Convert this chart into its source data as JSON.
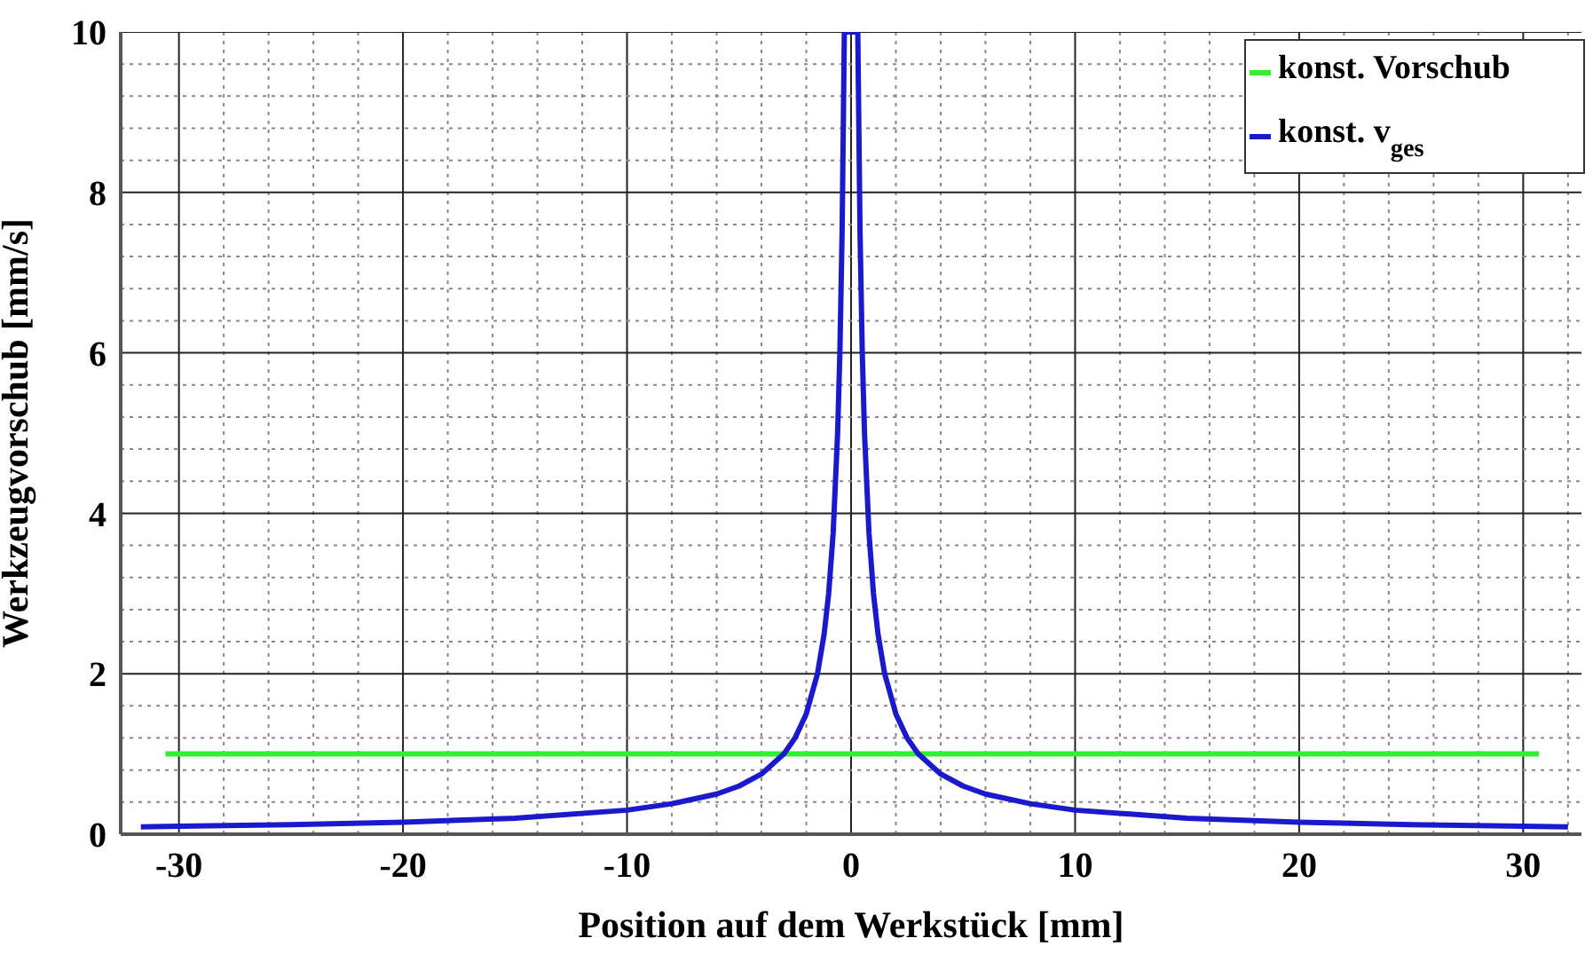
{
  "chart_data": {
    "type": "line",
    "xlabel": "Position auf dem Werkstück [mm]",
    "ylabel": "Werkzeugvorschub [mm/s]",
    "xlim": [
      -32.6,
      32.6
    ],
    "ylim": [
      0,
      10
    ],
    "xticks": [
      -30,
      {
        "value": -28,
        "label": null
      },
      {
        "value": -26,
        "label": null
      },
      {
        "value": -24,
        "label": null
      },
      {
        "value": -22,
        "label": null
      },
      -20,
      {
        "value": -18,
        "label": null
      },
      {
        "value": -16,
        "label": null
      },
      {
        "value": -14,
        "label": null
      },
      {
        "value": -12,
        "label": null
      },
      -10,
      {
        "value": -8,
        "label": null
      },
      {
        "value": -6,
        "label": null
      },
      {
        "value": -4,
        "label": null
      },
      {
        "value": -2,
        "label": null
      },
      0,
      {
        "value": 2,
        "label": null
      },
      {
        "value": 4,
        "label": null
      },
      {
        "value": 6,
        "label": null
      },
      {
        "value": 8,
        "label": null
      },
      10,
      {
        "value": 12,
        "label": null
      },
      {
        "value": 14,
        "label": null
      },
      {
        "value": 16,
        "label": null
      },
      {
        "value": 18,
        "label": null
      },
      20,
      {
        "value": 22,
        "label": null
      },
      {
        "value": 24,
        "label": null
      },
      {
        "value": 26,
        "label": null
      },
      {
        "value": 28,
        "label": null
      },
      30,
      {
        "value": 32,
        "label": null
      }
    ],
    "yticks": [
      0,
      {
        "value": 0.4,
        "label": null
      },
      {
        "value": 0.8,
        "label": null
      },
      {
        "value": 1.2,
        "label": null
      },
      {
        "value": 1.6,
        "label": null
      },
      2,
      {
        "value": 2.4,
        "label": null
      },
      {
        "value": 2.8,
        "label": null
      },
      {
        "value": 3.2,
        "label": null
      },
      {
        "value": 3.6,
        "label": null
      },
      4,
      {
        "value": 4.4,
        "label": null
      },
      {
        "value": 4.8,
        "label": null
      },
      {
        "value": 5.2,
        "label": null
      },
      {
        "value": 5.6,
        "label": null
      },
      6,
      {
        "value": 6.4,
        "label": null
      },
      {
        "value": 6.8,
        "label": null
      },
      {
        "value": 7.2,
        "label": null
      },
      {
        "value": 7.6,
        "label": null
      },
      8,
      {
        "value": 8.4,
        "label": null
      },
      {
        "value": 8.8,
        "label": null
      },
      {
        "value": 9.2,
        "label": null
      },
      {
        "value": 9.6,
        "label": null
      },
      10
    ],
    "grid": true,
    "legend": "top right",
    "marker": "none",
    "line_style": "solid",
    "series": [
      {
        "name": "konst. Vorschub",
        "color": "#33ee33",
        "x": [
          -30.6,
          30.7
        ],
        "values": [
          1,
          1
        ]
      },
      {
        "name": "konst. v$_{ges}$",
        "color": "#1a1acc",
        "x": [
          -31.7,
          -30,
          -25,
          -20,
          -15,
          -10,
          -8,
          -6,
          -5,
          -4,
          -3,
          -2.5,
          -2,
          -1.5,
          -1.2,
          -1,
          -0.8,
          -0.6,
          -0.5,
          -0.4,
          -0.3,
          0.3,
          0.4,
          0.5,
          0.6,
          0.8,
          1,
          1.2,
          1.5,
          2,
          2.5,
          3,
          4,
          5,
          6,
          8,
          10,
          15,
          20,
          25,
          30,
          32
        ],
        "values": [
          0.09,
          0.1,
          0.12,
          0.15,
          0.2,
          0.3,
          0.38,
          0.5,
          0.6,
          0.75,
          1,
          1.2,
          1.5,
          2,
          2.5,
          3,
          3.75,
          5,
          6,
          7.5,
          10,
          10,
          7.5,
          6,
          5,
          3.75,
          3,
          2.5,
          2,
          1.5,
          1.2,
          1,
          0.75,
          0.6,
          0.5,
          0.38,
          0.3,
          0.2,
          0.15,
          0.12,
          0.1,
          0.09
        ]
      }
    ]
  }
}
